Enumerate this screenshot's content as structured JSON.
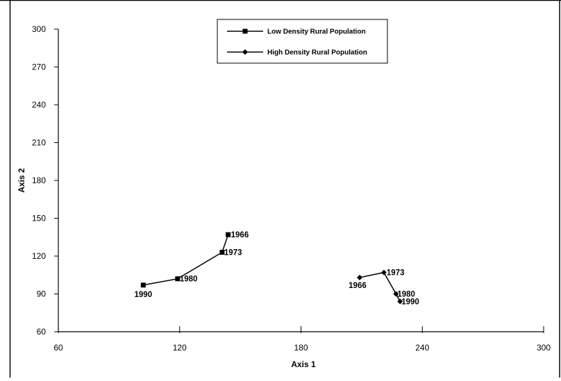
{
  "chart_data": {
    "type": "scatter",
    "title": "",
    "xlabel": "Axis 1",
    "ylabel": "Axis 2",
    "xlim": [
      60,
      300
    ],
    "ylim": [
      60,
      300
    ],
    "xticks": [
      60,
      120,
      180,
      240,
      300
    ],
    "yticks": [
      60,
      90,
      120,
      150,
      180,
      210,
      240,
      270,
      300
    ],
    "grid": false,
    "legend_position": "top-center",
    "series": [
      {
        "name": "Low Density Rural Population",
        "marker": "square",
        "color": "#000000",
        "points": [
          {
            "label": "1966",
            "x": 144,
            "y": 137
          },
          {
            "label": "1973",
            "x": 141,
            "y": 123
          },
          {
            "label": "1980",
            "x": 119,
            "y": 102
          },
          {
            "label": "1990",
            "x": 102,
            "y": 97
          }
        ]
      },
      {
        "name": "High Density Rural Population",
        "marker": "diamond",
        "color": "#000000",
        "points": [
          {
            "label": "1966",
            "x": 209,
            "y": 103
          },
          {
            "label": "1973",
            "x": 221,
            "y": 107
          },
          {
            "label": "1980",
            "x": 227,
            "y": 90
          },
          {
            "label": "1990",
            "x": 229,
            "y": 84
          }
        ]
      }
    ]
  }
}
